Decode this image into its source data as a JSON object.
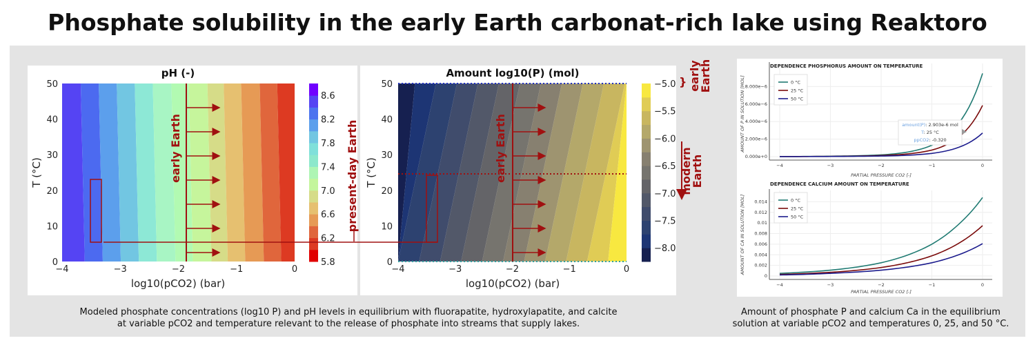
{
  "title": "Phosphate solubility in the early Earth carbonat-rich lake using Reaktoro",
  "captions": {
    "left_line1": "Modeled phosphate concentrations (log10 P) and pH levels in equilibrium with fluorapatite, hydroxylapatite, and calcite",
    "left_line2": "at variable pCO2 and temperature relevant to the release of phosphate into streams that supply lakes.",
    "right_line1": "Amount of phosphate P and calcium Ca in the equilibrium",
    "right_line2": "solution at variable pCO2 and temperatures 0, 25, and 50 °C."
  },
  "annotations": {
    "early_earth": "early Earth",
    "present_day_earth": "present-day Earth",
    "early": "early",
    "earth": "Earth",
    "modern": "modern",
    "brace": "}"
  },
  "colors": {
    "annotation": "#a01010",
    "panel_bg": "#e4e4e4",
    "t0": "#1f7a72",
    "t25": "#7a0a0a",
    "t50": "#1a1a8c"
  },
  "chart_data": [
    {
      "type": "heatmap",
      "title": "pH (-)",
      "xlabel": "log10(pCO2) (bar)",
      "ylabel": "T (°C)",
      "xlim": [
        -4,
        0
      ],
      "ylim": [
        0,
        50
      ],
      "xticks": [
        "−4",
        "−3",
        "−2",
        "−1",
        "0"
      ],
      "yticks": [
        "0",
        "10",
        "20",
        "30",
        "40",
        "50"
      ],
      "band_boundaries_at_50C": [
        -4,
        -3.68,
        -3.37,
        -3.06,
        -2.75,
        -2.44,
        -2.12,
        -1.82,
        -1.5,
        -1.22,
        -0.92,
        -0.6,
        -0.3,
        0
      ],
      "band_colors": [
        "#5544f3",
        "#4c6af0",
        "#5c9fec",
        "#72c6e2",
        "#8de8d6",
        "#a8f5c4",
        "#b2fab2",
        "#c6f59c",
        "#d6dc88",
        "#e6c070",
        "#e69a55",
        "#e0663c",
        "#dd3a22"
      ],
      "colorbar": {
        "ticks": [
          "5.8",
          "6.2",
          "6.6",
          "7.0",
          "7.4",
          "7.8",
          "8.2",
          "8.6"
        ],
        "range": [
          5.8,
          8.8
        ],
        "colors": [
          "#e00000",
          "#dd3a22",
          "#e0663c",
          "#e69a55",
          "#e6c070",
          "#d6dc88",
          "#c4f59c",
          "#aef5b4",
          "#8de8cc",
          "#80e0da",
          "#72c6e2",
          "#5c9fec",
          "#4c74ef",
          "#5544f3",
          "#7000ff"
        ]
      }
    },
    {
      "type": "heatmap",
      "title": "Amount log10(P) (mol)",
      "xlabel": "log10(pCO2) (bar)",
      "ylabel": "T (°C)",
      "xlim": [
        -4,
        0
      ],
      "ylim": [
        0,
        50
      ],
      "xticks": [
        "−4",
        "−3",
        "−2",
        "−1",
        "0"
      ],
      "yticks": [
        "0",
        "10",
        "20",
        "30",
        "40",
        "50"
      ],
      "model": {
        "intercept_at_x_minus4_T0": -7.75,
        "slope_per_log_pco2": 0.68,
        "slope_per_degC": -0.009
      },
      "colorbar": {
        "ticks": [
          "−8.0",
          "−7.5",
          "−7.0",
          "−6.5",
          "−6.0",
          "−5.5",
          "−5.0"
        ],
        "range": [
          -8.25,
          -5.0
        ],
        "colors": [
          "#162050",
          "#1d3574",
          "#2d4270",
          "#404c6c",
          "#525869",
          "#646468",
          "#76746e",
          "#878070",
          "#9e9470",
          "#b4a86a",
          "#c8b660",
          "#e0cc55",
          "#f8e840"
        ]
      }
    },
    {
      "type": "line",
      "title": "DEPENDENCE PHOSPHORUS AMOUNT ON TEMPERATURE",
      "xlabel": "PARTIAL PRESSURE CO2 [-]",
      "ylabel": "AMOUNT OF P IN SOLUTION [MOL]",
      "xticks": [
        "−4",
        "−3",
        "−2",
        "−1",
        "0"
      ],
      "yticks": [
        "0.000e+0",
        "2.000e−6",
        "4.000e−6",
        "6.000e−6",
        "8.000e−6"
      ],
      "x": [
        -4,
        -3,
        -2,
        -1.5,
        -1,
        -0.5,
        0
      ],
      "series": [
        {
          "name": "0 °C",
          "values": [
            1e-08,
            5e-08,
            2e-07,
            5e-07,
            1.3e-06,
            3.6e-06,
            9.5e-06
          ]
        },
        {
          "name": "25 °C",
          "values": [
            1e-08,
            3e-08,
            1.3e-07,
            3e-07,
            7.5e-07,
            2.1e-06,
            5.85e-06
          ]
        },
        {
          "name": "50 °C",
          "values": [
            5e-09,
            2e-08,
            7e-08,
            1.5e-07,
            3.7e-07,
            1e-06,
            2.7e-06
          ]
        }
      ],
      "tooltip": {
        "k1": "amount(P)",
        "v1": ": 2.903e-6 mol",
        "k2": "T",
        "v2": ": 25 °C",
        "k3": "ppCO2",
        "v3": ": -0.320"
      }
    },
    {
      "type": "line",
      "title": "DEPENDENCE CALCIUM AMOUNT ON TEMPERATURE",
      "xlabel": "PARTIAL PRESSURE CO2 [-]",
      "ylabel": "AMOUNT OF CA IN SOLUTION [MOL]",
      "xticks": [
        "−4",
        "−3",
        "−2",
        "−1",
        "0"
      ],
      "yticks": [
        "0",
        "0.002",
        "0.004",
        "0.006",
        "0.008",
        "0.01",
        "0.012",
        "0.014"
      ],
      "x": [
        -4,
        -3,
        -2,
        -1,
        -0.5,
        0
      ],
      "series": [
        {
          "name": "0 °C",
          "values": [
            0.0005,
            0.0011,
            0.0025,
            0.006,
            0.0095,
            0.0148
          ]
        },
        {
          "name": "25 °C",
          "values": [
            0.0003,
            0.0007,
            0.0016,
            0.0038,
            0.006,
            0.0095
          ]
        },
        {
          "name": "50 °C",
          "values": [
            0.0002,
            0.0005,
            0.0011,
            0.0025,
            0.0039,
            0.0061
          ]
        }
      ]
    }
  ]
}
